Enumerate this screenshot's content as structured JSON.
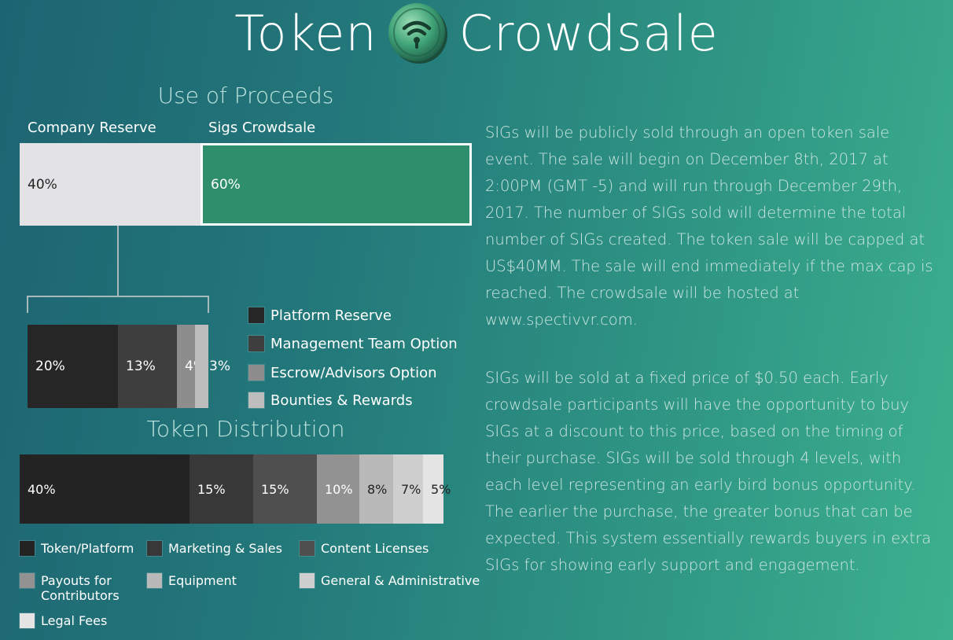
{
  "header": {
    "title_left": "Token",
    "title_right": "Crowdsale"
  },
  "proceeds": {
    "title": "Use of Proceeds",
    "labels": [
      "Company Reserve",
      "Sigs Crowdsale"
    ],
    "segments": [
      {
        "label": "40%",
        "value": 40,
        "color": "#e3e3e6",
        "text_color": "#222222"
      },
      {
        "label": "60%",
        "value": 60,
        "color": "#2f8f6c",
        "text_color": "#ffffff"
      }
    ]
  },
  "reserve_breakdown": {
    "segments": [
      {
        "label": "20%",
        "value": 20,
        "color": "#262626"
      },
      {
        "label": "13%",
        "value": 13,
        "color": "#3e3e3e"
      },
      {
        "label": "4%",
        "value": 4,
        "color": "#8d8d8d"
      },
      {
        "label": "3%",
        "value": 3,
        "color": "#bdbdbd"
      }
    ],
    "legend": [
      {
        "name": "Platform Reserve",
        "color": "#262626"
      },
      {
        "name": "Management Team Option",
        "color": "#3e3e3e"
      },
      {
        "name": "Escrow/Advisors Option",
        "color": "#8d8d8d"
      },
      {
        "name": "Bounties & Rewards",
        "color": "#bdbdbd"
      }
    ]
  },
  "distribution": {
    "title": "Token Distribution",
    "segments": [
      {
        "label": "40%",
        "value": 40,
        "color": "#232323",
        "text_color": "#ffffff"
      },
      {
        "label": "15%",
        "value": 15,
        "color": "#383838",
        "text_color": "#ffffff"
      },
      {
        "label": "15%",
        "value": 15,
        "color": "#4f4f4f",
        "text_color": "#ffffff"
      },
      {
        "label": "10%",
        "value": 10,
        "color": "#929292",
        "text_color": "#ffffff"
      },
      {
        "label": "8%",
        "value": 8,
        "color": "#b9b9b9",
        "text_color": "#222222"
      },
      {
        "label": "7%",
        "value": 7,
        "color": "#cfcfcf",
        "text_color": "#222222"
      },
      {
        "label": "5%",
        "value": 5,
        "color": "#e4e4e4",
        "text_color": "#222222"
      }
    ],
    "legend": [
      {
        "name": "Token/Platform",
        "color": "#232323"
      },
      {
        "name": "Marketing & Sales",
        "color": "#383838"
      },
      {
        "name": "Content Licenses",
        "color": "#4f4f4f"
      },
      {
        "name": "Payouts for Contributors",
        "color": "#929292"
      },
      {
        "name": "Equipment",
        "color": "#b9b9b9"
      },
      {
        "name": "General & Administrative",
        "color": "#cfcfcf"
      },
      {
        "name": "Legal Fees",
        "color": "#e4e4e4"
      }
    ]
  },
  "description": {
    "paragraph1": "SIGs will be publicly sold through an open token sale event. The sale will begin on December 8th, 2017 at 2:00PM (GMT -5) and will run through December 29th, 2017. The number of SIGs sold will determine the total number of SIGs created. The token sale will be capped at US$40MM. The sale will end immediately if the max cap is reached. The crowdsale will be hosted at www.spectivvr.com.",
    "paragraph2": "SIGs will be sold at a fixed price of $0.50 each. Early crowdsale participants will have the opportunity to buy SIGs at a discount to this price, based on the timing of their purchase. SIGs will be sold through 4 levels, with each level representing an early bird bonus opportunity. The earlier the purchase, the greater bonus that can be expected. This system essentially rewards buyers in extra SIGs for showing early support and engagement."
  },
  "chart_data": [
    {
      "type": "bar",
      "title": "Use of Proceeds",
      "categories": [
        "Company Reserve",
        "Sigs Crowdsale"
      ],
      "values": [
        40,
        60
      ],
      "stacked": true,
      "unit": "%"
    },
    {
      "type": "bar",
      "title": "",
      "categories": [
        "Platform Reserve",
        "Management Team Option",
        "Escrow/Advisors Option",
        "Bounties & Rewards"
      ],
      "values": [
        20,
        13,
        4,
        3
      ],
      "stacked": true,
      "unit": "%"
    },
    {
      "type": "bar",
      "title": "Token Distribution",
      "categories": [
        "Token/Platform",
        "Marketing & Sales",
        "Content Licenses",
        "Payouts for Contributors",
        "Equipment",
        "General & Administrative",
        "Legal Fees"
      ],
      "values": [
        40,
        15,
        15,
        10,
        8,
        7,
        5
      ],
      "stacked": true,
      "unit": "%"
    }
  ]
}
